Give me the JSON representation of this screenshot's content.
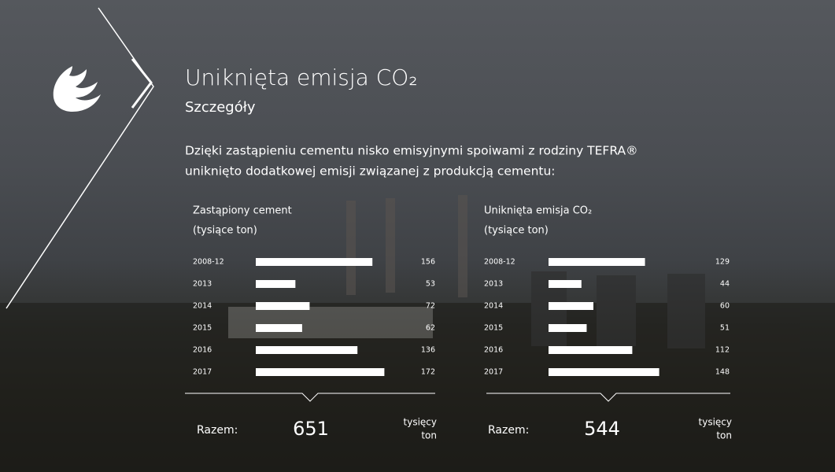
{
  "title": "Uniknięta emisja CO₂",
  "subtitle": "Szczegóły",
  "description": [
    "Dzięki zastąpieniu cementu nisko emisyjnymi spoiwami z rodziny TEFRA®",
    "uniknięto dodatkowej emisji związanej z produkcją cementu:"
  ],
  "chart_data": [
    {
      "type": "bar",
      "orientation": "horizontal",
      "title": "Zastąpiony cement",
      "subtitle": "(tysiące ton)",
      "categories": [
        "2008-12",
        "2013",
        "2014",
        "2015",
        "2016",
        "2017"
      ],
      "values": [
        156,
        53,
        72,
        62,
        136,
        172
      ],
      "color": "#ffffff",
      "total_label": "Razem:",
      "total": 651,
      "total_unit": [
        "tysięcy",
        "ton"
      ]
    },
    {
      "type": "bar",
      "orientation": "horizontal",
      "title": "Uniknięta emisja CO₂",
      "subtitle": "(tysiące ton)",
      "categories": [
        "2008-12",
        "2013",
        "2014",
        "2015",
        "2016",
        "2017"
      ],
      "values": [
        129,
        44,
        60,
        51,
        112,
        148
      ],
      "color": "#ffffff",
      "total_label": "Razem:",
      "total": 544,
      "total_unit": [
        "tysięcy",
        "ton"
      ]
    }
  ]
}
